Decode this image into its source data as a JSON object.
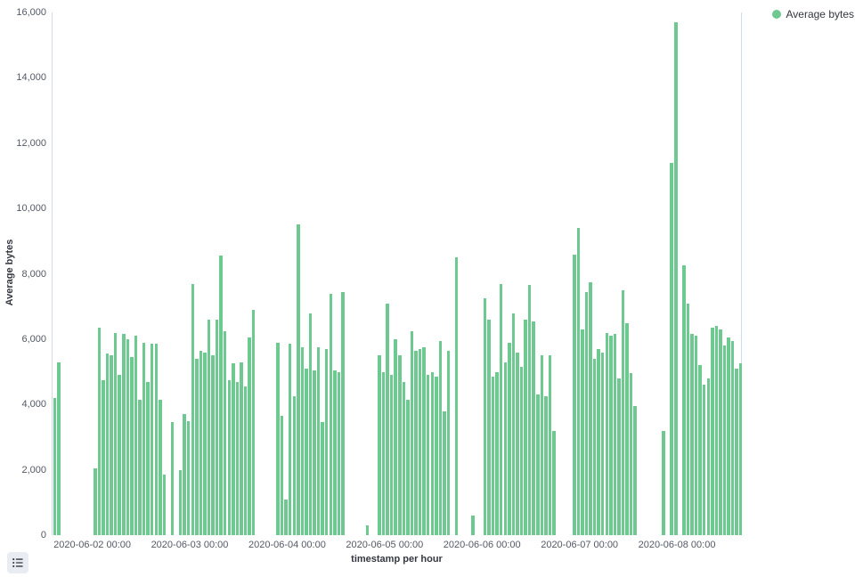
{
  "legend": {
    "items": [
      {
        "label": "Average bytes",
        "color": "#6DC98F"
      }
    ]
  },
  "colors": {
    "bar": "#6DC98F",
    "axis_line": "#D3DAE6",
    "tick_text": "#535966",
    "title_text": "#343741"
  },
  "controls": {
    "legend_toggle_icon": "list-icon"
  },
  "chart_data": {
    "type": "bar",
    "title": "",
    "xlabel": "timestamp per hour",
    "ylabel": "Average bytes",
    "series_name": "Average bytes",
    "bar_color": "#6DC98F",
    "ylim": [
      0,
      16000
    ],
    "y_tick_step": 2000,
    "y_tick_labels": [
      "0",
      "2,000",
      "4,000",
      "6,000",
      "8,000",
      "10,000",
      "12,000",
      "14,000",
      "16,000"
    ],
    "grid": false,
    "legend_position": "top-right",
    "total_hours": 170,
    "x_ticks": [
      {
        "hour": 10,
        "label": "2020-06-02 00:00"
      },
      {
        "hour": 34,
        "label": "2020-06-03 00:00"
      },
      {
        "hour": 58,
        "label": "2020-06-04 00:00"
      },
      {
        "hour": 82,
        "label": "2020-06-05 00:00"
      },
      {
        "hour": 106,
        "label": "2020-06-06 00:00"
      },
      {
        "hour": 130,
        "label": "2020-06-07 00:00"
      },
      {
        "hour": 154,
        "label": "2020-06-08 00:00"
      }
    ],
    "bars": [
      [
        0,
        4200
      ],
      [
        1,
        5300
      ],
      [
        10,
        2050
      ],
      [
        11,
        6350
      ],
      [
        12,
        4750
      ],
      [
        13,
        5550
      ],
      [
        14,
        5500
      ],
      [
        15,
        6200
      ],
      [
        16,
        4900
      ],
      [
        17,
        6150
      ],
      [
        18,
        6000
      ],
      [
        19,
        5450
      ],
      [
        20,
        6100
      ],
      [
        21,
        4150
      ],
      [
        22,
        5900
      ],
      [
        23,
        4700
      ],
      [
        24,
        5850
      ],
      [
        25,
        5850
      ],
      [
        26,
        4150
      ],
      [
        27,
        1850
      ],
      [
        29,
        3450
      ],
      [
        31,
        2000
      ],
      [
        32,
        3700
      ],
      [
        33,
        3500
      ],
      [
        34,
        7700
      ],
      [
        35,
        5400
      ],
      [
        36,
        5650
      ],
      [
        37,
        5600
      ],
      [
        38,
        6600
      ],
      [
        39,
        5500
      ],
      [
        40,
        6600
      ],
      [
        41,
        8550
      ],
      [
        42,
        6250
      ],
      [
        43,
        4750
      ],
      [
        44,
        5250
      ],
      [
        45,
        4700
      ],
      [
        46,
        5300
      ],
      [
        47,
        4550
      ],
      [
        48,
        6050
      ],
      [
        49,
        6900
      ],
      [
        55,
        5900
      ],
      [
        56,
        3650
      ],
      [
        57,
        1100
      ],
      [
        58,
        5850
      ],
      [
        59,
        4250
      ],
      [
        60,
        9500
      ],
      [
        61,
        5750
      ],
      [
        62,
        5100
      ],
      [
        63,
        6800
      ],
      [
        64,
        5050
      ],
      [
        65,
        5750
      ],
      [
        66,
        3450
      ],
      [
        67,
        5700
      ],
      [
        68,
        7400
      ],
      [
        69,
        5050
      ],
      [
        70,
        5000
      ],
      [
        71,
        7450
      ],
      [
        77,
        300
      ],
      [
        80,
        5500
      ],
      [
        81,
        5000
      ],
      [
        82,
        7100
      ],
      [
        83,
        4900
      ],
      [
        84,
        6000
      ],
      [
        85,
        5500
      ],
      [
        86,
        4700
      ],
      [
        87,
        4150
      ],
      [
        88,
        6250
      ],
      [
        89,
        5650
      ],
      [
        90,
        5700
      ],
      [
        91,
        5750
      ],
      [
        92,
        4900
      ],
      [
        93,
        5000
      ],
      [
        94,
        4850
      ],
      [
        95,
        5950
      ],
      [
        96,
        3800
      ],
      [
        97,
        5650
      ],
      [
        99,
        8500
      ],
      [
        103,
        600
      ],
      [
        106,
        7250
      ],
      [
        107,
        6600
      ],
      [
        108,
        4850
      ],
      [
        109,
        5000
      ],
      [
        110,
        7700
      ],
      [
        111,
        5300
      ],
      [
        112,
        5900
      ],
      [
        113,
        6800
      ],
      [
        114,
        5600
      ],
      [
        115,
        5150
      ],
      [
        116,
        6600
      ],
      [
        117,
        7650
      ],
      [
        118,
        6550
      ],
      [
        119,
        4300
      ],
      [
        120,
        5500
      ],
      [
        121,
        4250
      ],
      [
        122,
        5500
      ],
      [
        123,
        3200
      ],
      [
        128,
        8600
      ],
      [
        129,
        9400
      ],
      [
        130,
        6300
      ],
      [
        131,
        7450
      ],
      [
        132,
        7750
      ],
      [
        133,
        5400
      ],
      [
        134,
        5700
      ],
      [
        135,
        5600
      ],
      [
        136,
        6200
      ],
      [
        137,
        6100
      ],
      [
        138,
        6150
      ],
      [
        139,
        4800
      ],
      [
        140,
        7500
      ],
      [
        141,
        6500
      ],
      [
        142,
        4950
      ],
      [
        143,
        3950
      ],
      [
        150,
        3200
      ],
      [
        152,
        11400
      ],
      [
        153,
        15700
      ],
      [
        155,
        8250
      ],
      [
        156,
        7100
      ],
      [
        157,
        6150
      ],
      [
        158,
        6100
      ],
      [
        159,
        5200
      ],
      [
        160,
        4600
      ],
      [
        161,
        4800
      ],
      [
        162,
        6350
      ],
      [
        163,
        6400
      ],
      [
        164,
        6300
      ],
      [
        165,
        5800
      ],
      [
        166,
        6050
      ],
      [
        167,
        5950
      ],
      [
        168,
        5100
      ],
      [
        169,
        5250
      ]
    ]
  }
}
